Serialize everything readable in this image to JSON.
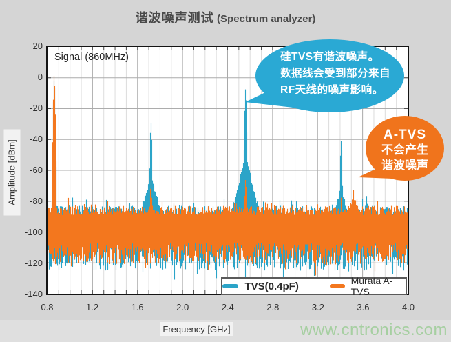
{
  "title": {
    "zh": "谐波噪声测试",
    "en": "(Spectrum analyzer)"
  },
  "signal_label": "Signal (860MHz)",
  "watermark": "www.cntronics.com",
  "axes": {
    "x_label": "Frequency [GHz]",
    "y_label": "Amplitude [dBm]",
    "x_ticks": [
      "0.8",
      "1.2",
      "1.6",
      "2.0",
      "2.4",
      "2.8",
      "3.2",
      "3.6",
      "4.0"
    ],
    "y_ticks": [
      "20",
      "0",
      "-20",
      "-40",
      "-60",
      "-80",
      "-100",
      "-120",
      "-140"
    ]
  },
  "legend": [
    {
      "name": "Murata A-TVS",
      "color": "#F3771E"
    },
    {
      "name": "TVS(0.4pF)",
      "color": "#2BA4C8"
    }
  ],
  "callouts": {
    "tvs": {
      "line1": "硅TVS有谐波噪声。",
      "line2": "数据线会受到部分来自",
      "line3": "RF天线的噪声影响。",
      "fill": "#2AA9D4"
    },
    "atvs": {
      "line1": "A-TVS",
      "line2": "不会产生",
      "line3": "谐波噪声",
      "fill": "#F0741C"
    }
  },
  "colors": {
    "background": "#D5D5D5",
    "plot_background": "#FFFFFF",
    "plot_border": "#141414",
    "grid_minor": "#DCDCDC",
    "grid_major": "#A9A9A9",
    "grid_horizontal": "#ACACAC",
    "tick_stub": "#4D4D4D",
    "title_text": "#4A4A4A",
    "watermark_green": "#A6CFA1",
    "trace_orange": "#F3771E",
    "trace_blue": "#2BA4C8"
  },
  "chart_data": {
    "type": "line",
    "subtype": "spectrum-analyzer-trace",
    "title": "谐波噪声测试 (Spectrum analyzer)",
    "xlabel": "Frequency [GHz]",
    "ylabel": "Amplitude [dBm]",
    "xlim": [
      0.8,
      4.0
    ],
    "ylim": [
      -140,
      20
    ],
    "x_major_tick_step": 0.4,
    "x_minor_tick_step": 0.1,
    "y_tick_step": 20,
    "grid": true,
    "legend_position": "bottom-inside",
    "signal_frequency_ghz": 0.86,
    "series": [
      {
        "name": "TVS(0.4pF)",
        "color": "#2BA4C8",
        "noise_floor": {
          "top_dbm": -90,
          "top_jitter_db": 7,
          "spike_chance": 0.12,
          "spike_extra_db": 7,
          "bottom_dbm": -108,
          "bottom_jitter_db": 17
        },
        "peaks": [
          {
            "freq_ghz": 0.86,
            "amplitude_dbm": -1,
            "skirt_drop_db": 75,
            "skirt_slope_db_per_ghz": 1200
          },
          {
            "freq_ghz": 1.72,
            "amplitude_dbm": -30,
            "skirt_drop_db": 34,
            "skirt_slope_db_per_ghz": 260
          },
          {
            "freq_ghz": 2.56,
            "amplitude_dbm": -8.5,
            "skirt_drop_db": 42,
            "skirt_slope_db_per_ghz": 300
          },
          {
            "freq_ghz": 3.41,
            "amplitude_dbm": -39.5,
            "skirt_drop_db": 32,
            "skirt_slope_db_per_ghz": 280
          }
        ]
      },
      {
        "name": "Murata A-TVS",
        "color": "#F3771E",
        "noise_floor": {
          "top_dbm": -89,
          "top_jitter_db": 6,
          "spike_chance": 0.1,
          "spike_extra_db": 6,
          "bottom_dbm": -107,
          "bottom_jitter_db": 14
        },
        "peaks": [
          {
            "freq_ghz": 0.86,
            "amplitude_dbm": 1,
            "skirt_drop_db": 80,
            "skirt_slope_db_per_ghz": 1300
          },
          {
            "freq_ghz": 1.72,
            "amplitude_dbm": -66,
            "skirt_drop_db": 13,
            "skirt_slope_db_per_ghz": 380
          },
          {
            "freq_ghz": 2.56,
            "amplitude_dbm": -65,
            "skirt_drop_db": 13,
            "skirt_slope_db_per_ghz": 380
          },
          {
            "freq_ghz": 3.41,
            "amplitude_dbm": -79,
            "skirt_drop_db": 8,
            "skirt_slope_db_per_ghz": 320
          },
          {
            "freq_ghz": 3.52,
            "amplitude_dbm": -72,
            "skirt_drop_db": 5,
            "skirt_slope_db_per_ghz": 200
          }
        ]
      }
    ]
  }
}
